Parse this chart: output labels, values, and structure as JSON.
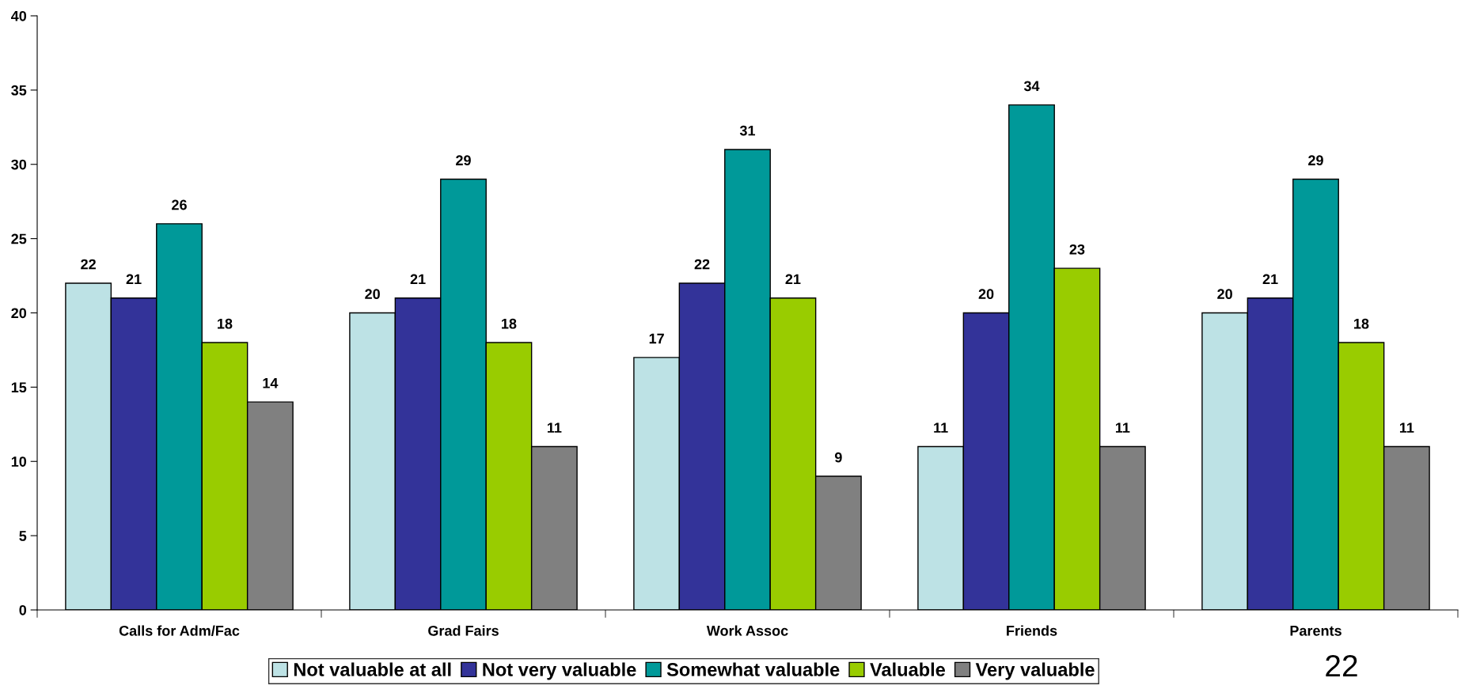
{
  "chart_data": {
    "type": "bar",
    "categories": [
      "Calls for Adm/Fac",
      "Grad Fairs",
      "Work Assoc",
      "Friends",
      "Parents"
    ],
    "series": [
      {
        "name": "Not valuable at all",
        "color": "#bde2e5",
        "values": [
          22,
          20,
          17,
          11,
          20
        ]
      },
      {
        "name": "Not very valuable",
        "color": "#333399",
        "values": [
          21,
          21,
          22,
          20,
          21
        ]
      },
      {
        "name": "Somewhat valuable",
        "color": "#009999",
        "values": [
          26,
          29,
          31,
          34,
          29
        ]
      },
      {
        "name": "Valuable",
        "color": "#99cc00",
        "values": [
          18,
          18,
          21,
          23,
          18
        ]
      },
      {
        "name": "Very valuable",
        "color": "#808080",
        "values": [
          14,
          11,
          9,
          11,
          11
        ]
      }
    ],
    "ylim": [
      0,
      40
    ],
    "yticks": [
      0,
      5,
      10,
      15,
      20,
      25,
      30,
      35,
      40
    ],
    "data_labels": true,
    "grid": false,
    "legend": "bottom",
    "annotations": [
      "22"
    ]
  }
}
